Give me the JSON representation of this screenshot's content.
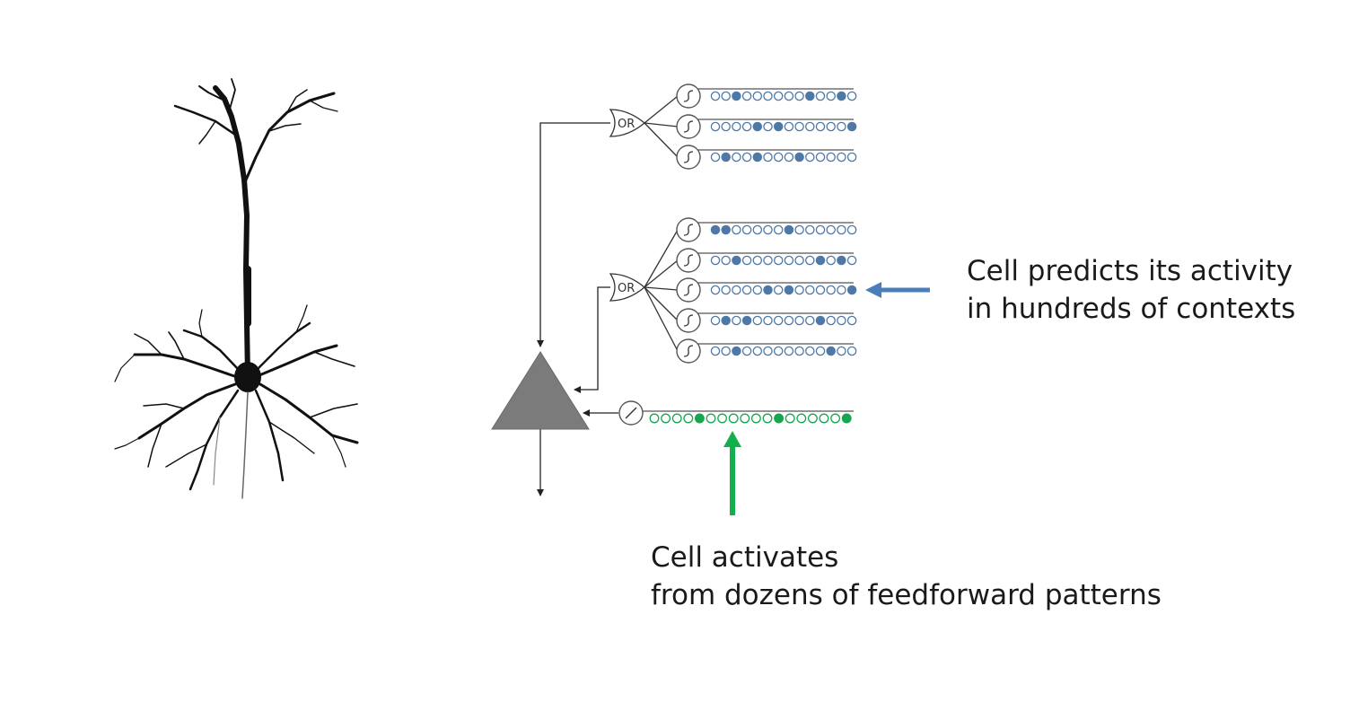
{
  "labels": {
    "predict": {
      "line1": "Cell predicts its activity",
      "line2": "in hundreds of contexts"
    },
    "activate": {
      "line1": "Cell activates",
      "line2": "from dozens of feedforward patterns"
    }
  },
  "gates": {
    "or_text": "OR"
  },
  "colors": {
    "blue_arrow": "#4a7ebb",
    "green_arrow": "#12b04a",
    "synapse_blue": "#4e79a7",
    "synapse_green": "#17a650",
    "cell_body": "#7b7b7b",
    "neuron": "#111111"
  },
  "diagram": {
    "distal_group_top": [
      [
        0,
        0,
        1,
        0,
        0,
        0,
        0,
        0,
        0,
        1,
        0,
        0,
        1,
        0
      ],
      [
        0,
        0,
        0,
        0,
        1,
        0,
        1,
        0,
        0,
        0,
        0,
        0,
        0,
        1
      ],
      [
        0,
        1,
        0,
        0,
        1,
        0,
        0,
        0,
        1,
        0,
        0,
        0,
        0,
        0
      ]
    ],
    "distal_group_middle": [
      [
        1,
        1,
        0,
        0,
        0,
        0,
        0,
        1,
        0,
        0,
        0,
        0,
        0,
        0
      ],
      [
        0,
        0,
        1,
        0,
        0,
        0,
        0,
        0,
        0,
        0,
        1,
        0,
        1,
        0
      ],
      [
        0,
        0,
        0,
        0,
        0,
        1,
        0,
        1,
        0,
        0,
        0,
        0,
        0,
        1
      ],
      [
        0,
        1,
        0,
        1,
        0,
        0,
        0,
        0,
        0,
        0,
        1,
        0,
        0,
        0
      ],
      [
        0,
        0,
        1,
        0,
        0,
        0,
        0,
        0,
        0,
        0,
        0,
        1,
        0,
        0
      ]
    ],
    "proximal": [
      0,
      0,
      0,
      0,
      1,
      0,
      0,
      0,
      0,
      0,
      0,
      1,
      0,
      0,
      0,
      0,
      0,
      1
    ]
  }
}
